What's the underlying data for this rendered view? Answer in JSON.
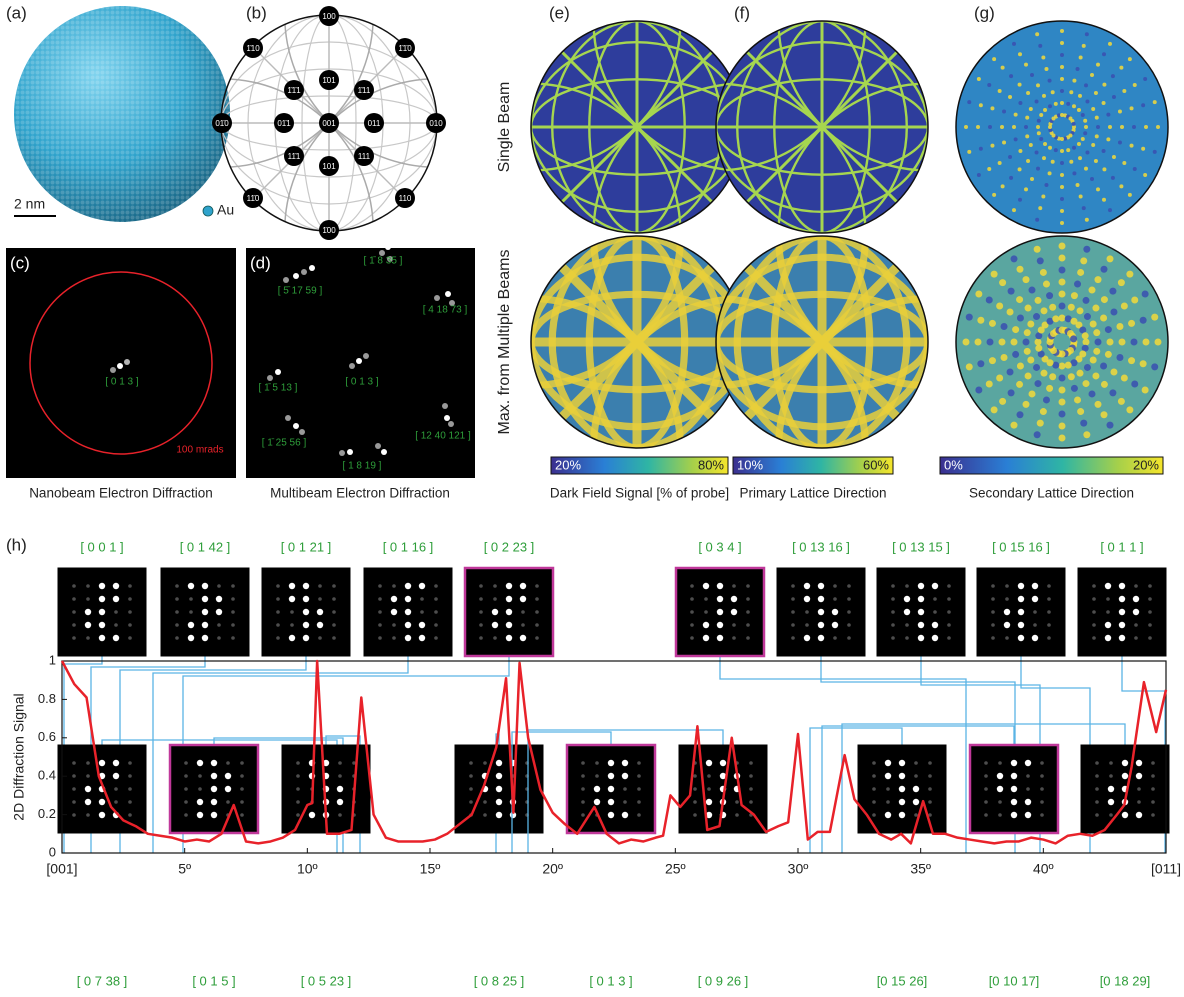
{
  "panels": {
    "a": {
      "label": "(a)",
      "scale": "2 nm",
      "legend": "Au"
    },
    "b": {
      "label": "(b)",
      "poles": [
        {
          "label": "100"
        },
        {
          "label": "1̄00"
        },
        {
          "label": "01̄0"
        },
        {
          "label": "010"
        },
        {
          "label": "001"
        },
        {
          "label": "01̄1"
        },
        {
          "label": "011"
        },
        {
          "label": "1̄01"
        },
        {
          "label": "101"
        },
        {
          "label": "1̄10"
        },
        {
          "label": "1̄1̄0"
        },
        {
          "label": "11̄0"
        },
        {
          "label": "110"
        },
        {
          "label": "1̄1̄1"
        },
        {
          "label": "1̄11"
        },
        {
          "label": "11̄1"
        },
        {
          "label": "111"
        }
      ]
    },
    "c": {
      "label": "(c)",
      "zone": "[ 0 1 3 ]",
      "radius_label": "100 mrads",
      "caption": "Nanobeam Electron Diffraction"
    },
    "d": {
      "label": "(d)",
      "zones": [
        "[ 5̄ 17 59 ]",
        "[ 1̄ 8 35 ]",
        "[ 4 18 73 ]",
        "[ 1̄ 5 13 ]",
        "[ 0 1 3 ]",
        "[ 12 40 121 ]",
        "[ 1̄ 25 56 ]",
        "[ 1 8 19 ]"
      ],
      "caption": "Multibeam Electron Diffraction"
    },
    "maps": {
      "rows": [
        "Single Beam",
        "Max. from Multiple Beams"
      ],
      "columns": [
        {
          "label": "(e)",
          "min": "20%",
          "max": "80%",
          "caption": "Dark Field Signal [% of probe]"
        },
        {
          "label": "(f)",
          "min": "10%",
          "max": "60%",
          "caption": "Primary Lattice Direction"
        },
        {
          "label": "(g)",
          "min": "0%",
          "max": "20%",
          "caption": "Secondary Lattice Direction"
        }
      ]
    },
    "h": {
      "label": "(h)"
    }
  },
  "thumbnails": {
    "top": [
      {
        "label": "[ 0 0 1 ]"
      },
      {
        "label": "[ 0 1 42 ]"
      },
      {
        "label": "[ 0 1 21 ]"
      },
      {
        "label": "[ 0 1 16 ]"
      },
      {
        "label": "[ 0 2 23 ]",
        "highlight": true
      },
      {
        "label": "[ 0 3 4 ]",
        "highlight": true
      },
      {
        "label": "[ 0 13 16 ]"
      },
      {
        "label": "[ 0 13 15 ]"
      },
      {
        "label": "[ 0 15 16 ]"
      },
      {
        "label": "[ 0 1 1 ]"
      }
    ],
    "bottom": [
      {
        "label": "[ 0 7 38 ]"
      },
      {
        "label": "[ 0 1 5 ]",
        "highlight": true
      },
      {
        "label": "[ 0 5 23 ]"
      },
      {
        "label": "[ 0 8 25 ]"
      },
      {
        "label": "[ 0 1 3 ]",
        "highlight": true
      },
      {
        "label": "[ 0 9 26 ]"
      },
      {
        "label": "[0 15 26]"
      },
      {
        "label": "[0 10 17]",
        "highlight": true
      },
      {
        "label": "[0 18 29]"
      }
    ]
  },
  "chart_data": {
    "type": "line",
    "y_label": "2D Diffraction Signal",
    "x": [
      0,
      0.5,
      1,
      1.5,
      2,
      2.5,
      3,
      3.5,
      4,
      4.5,
      5,
      5.5,
      6,
      6.5,
      7,
      7.5,
      8,
      8.5,
      9,
      9.5,
      10,
      10.2,
      10.4,
      10.8,
      11.3,
      11.8,
      12.2,
      12.7,
      13.2,
      13.7,
      14.2,
      14.7,
      15.2,
      15.7,
      16.2,
      16.7,
      17.2,
      17.7,
      18.1,
      18.4,
      18.65,
      19,
      19.5,
      20,
      20.5,
      21,
      21.7,
      22.2,
      22.7,
      23.2,
      23.7,
      24.2,
      24.5,
      24.8,
      25.2,
      25.6,
      25.9,
      26.3,
      26.8,
      27.3,
      27.7,
      28.2,
      28.7,
      29.2,
      29.6,
      30,
      30.4,
      30.8,
      31.3,
      31.9,
      32.3,
      32.8,
      33.3,
      33.8,
      34.2,
      34.6,
      35.1,
      35.5,
      36,
      36.5,
      37,
      37.5,
      38,
      38.5,
      39,
      39.5,
      40,
      40.5,
      41,
      41.5,
      42,
      42.5,
      43,
      43.3,
      43.6,
      44.1,
      44.6,
      45
    ],
    "series": [
      {
        "color": "#e8222a",
        "values": [
          1,
          0.88,
          0.81,
          0.4,
          0.24,
          0.17,
          0.14,
          0.1,
          0.09,
          0.08,
          0.06,
          0.07,
          0.06,
          0.1,
          0.25,
          0.06,
          0.05,
          0.06,
          0.08,
          0.12,
          0.25,
          0.26,
          1,
          0.1,
          0.1,
          0.12,
          0.81,
          0.2,
          0.08,
          0.06,
          0.06,
          0.06,
          0.07,
          0.1,
          0.15,
          0.2,
          0.35,
          0.55,
          0.91,
          0.21,
          0.99,
          0.6,
          0.33,
          0.21,
          0.15,
          0.1,
          0.24,
          0.1,
          0.05,
          0.07,
          0.06,
          0.08,
          0.09,
          0.3,
          0.24,
          0.3,
          0.66,
          0.12,
          0.14,
          0.6,
          0.25,
          0.2,
          0.11,
          0.14,
          0.16,
          0.62,
          0.07,
          0.11,
          0.11,
          0.51,
          0.28,
          0.2,
          0.1,
          0.07,
          0.1,
          0.05,
          0.27,
          0.1,
          0.1,
          0.08,
          0.07,
          0.06,
          0.05,
          0.06,
          0.06,
          0.08,
          0.07,
          0.05,
          0.09,
          0.1,
          0.09,
          0.12,
          0.2,
          0.25,
          0.45,
          0.89,
          0.63,
          0.85
        ]
      }
    ],
    "xlim": [
      0,
      45
    ],
    "ylim": [
      0,
      1
    ],
    "xticks": [
      {
        "value": 0,
        "label": "[001]"
      },
      {
        "value": 5,
        "label": "5º"
      },
      {
        "value": 10,
        "label": "10º"
      },
      {
        "value": 15,
        "label": "15º"
      },
      {
        "value": 20,
        "label": "20º"
      },
      {
        "value": 25,
        "label": "25º"
      },
      {
        "value": 30,
        "label": "30º"
      },
      {
        "value": 35,
        "label": "35º"
      },
      {
        "value": 40,
        "label": "40º"
      },
      {
        "value": 45,
        "label": "[011]"
      }
    ],
    "yticks": [
      0,
      0.2,
      0.4,
      0.6,
      0.8,
      1
    ]
  }
}
